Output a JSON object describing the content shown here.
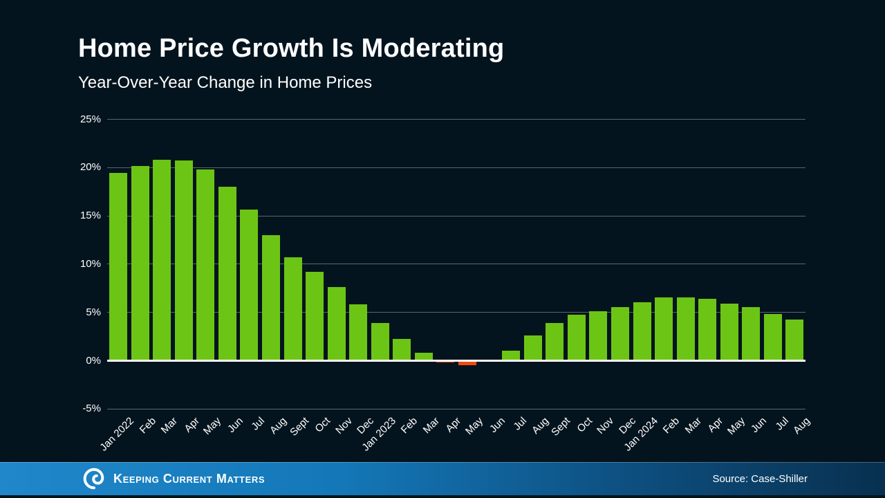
{
  "slide": {
    "title": "Home Price Growth Is Moderating",
    "subtitle": "Year-Over-Year Change in Home Prices",
    "brand": "Keeping Current Matters",
    "source": "Source: Case-Shiller"
  },
  "colors": {
    "background_top": "#031621",
    "background_bottom": "#05283a",
    "bar_positive": "#6cc515",
    "bar_negative": "#f04a10",
    "gridline": "rgba(255,255,255,0.35)",
    "baseline": "#ffffff",
    "text": "#ffffff",
    "footer_blue_left": "#1f87ca",
    "footer_blue_right": "#08304f"
  },
  "chart_data": {
    "type": "bar",
    "title": "Home Price Growth Is Moderating",
    "subtitle": "Year-Over-Year Change in Home Prices",
    "xlabel": "",
    "ylabel": "",
    "ylim": [
      -5,
      25
    ],
    "yticks": [
      25,
      20,
      15,
      10,
      5,
      0,
      -5
    ],
    "ytick_labels": [
      "25%",
      "20%",
      "15%",
      "10%",
      "5%",
      "0%",
      "-5%"
    ],
    "grid": true,
    "legend": false,
    "categories": [
      "Jan 2022",
      "Feb",
      "Mar",
      "Apr",
      "May",
      "Jun",
      "Jul",
      "Aug",
      "Sept",
      "Oct",
      "Nov",
      "Dec",
      "Jan 2023",
      "Feb",
      "Mar",
      "Apr",
      "May",
      "Jun",
      "Jul",
      "Aug",
      "Sept",
      "Oct",
      "Nov",
      "Dec",
      "Jan 2024",
      "Feb",
      "Mar",
      "Apr",
      "May",
      "Jun",
      "Jul",
      "Aug"
    ],
    "values": [
      19.4,
      20.1,
      20.8,
      20.7,
      19.8,
      18.0,
      15.6,
      13.0,
      10.7,
      9.2,
      7.6,
      5.8,
      3.9,
      2.2,
      0.8,
      -0.1,
      -0.4,
      0.0,
      1.0,
      2.6,
      3.9,
      4.7,
      5.1,
      5.5,
      6.0,
      6.5,
      6.5,
      6.4,
      5.9,
      5.5,
      4.8,
      4.2
    ],
    "source": "Source: Case-Shiller"
  }
}
